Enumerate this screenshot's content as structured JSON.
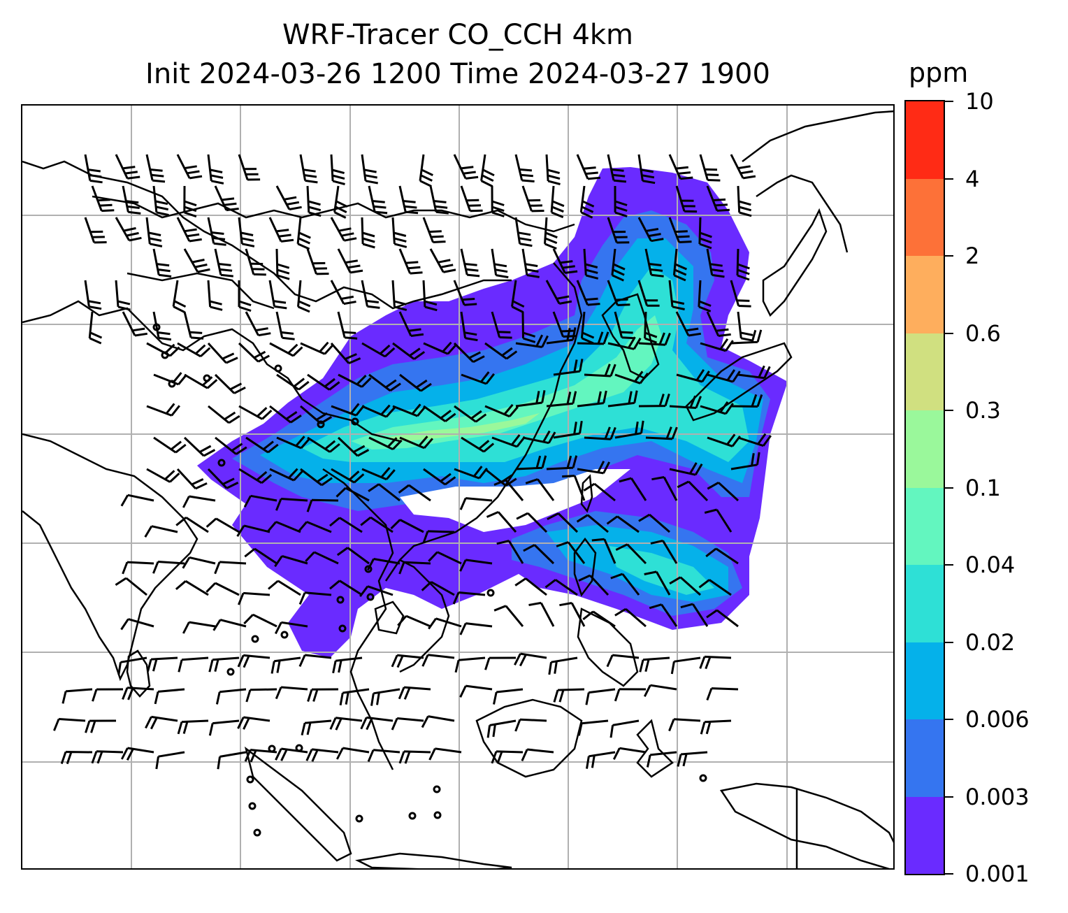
{
  "title": {
    "line1": "WRF-Tracer CO_CCH 4km",
    "line2": "Init 2024-03-26 1200 Time 2024-03-27 1900"
  },
  "colorbar": {
    "unit": "ppm",
    "labels": [
      "0.001",
      "0.003",
      "0.006",
      "0.02",
      "0.04",
      "0.1",
      "0.3",
      "0.6",
      "2",
      "4",
      "10"
    ],
    "colors": [
      "#6a2bff",
      "#3575f0",
      "#05b1ea",
      "#2ee0d6",
      "#63f6bf",
      "#9af89b",
      "#d0e080",
      "#feae5d",
      "#fd7138",
      "#ff2b15"
    ]
  },
  "map": {
    "gridline_color": "#b0b0b0",
    "coastline_color": "#000000",
    "wind_barb_color": "#000000"
  }
}
